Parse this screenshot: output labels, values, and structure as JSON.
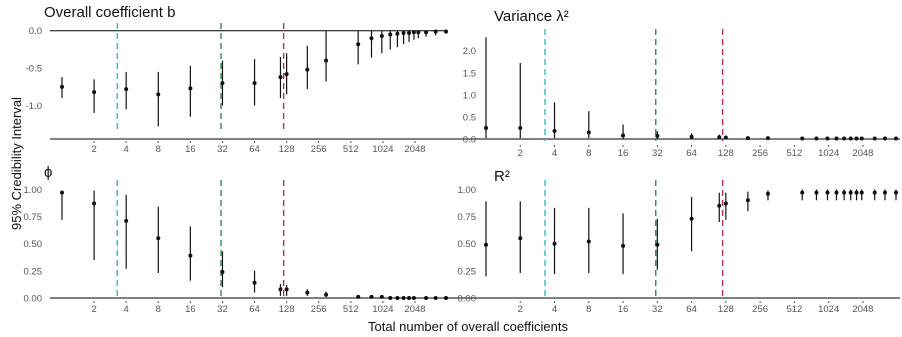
{
  "figure": {
    "ylabel": "95% Credibility Interval",
    "xlabel": "Total number of overall coefficients",
    "x_ticks": [
      2,
      4,
      8,
      16,
      32,
      64,
      128,
      256,
      512,
      1024,
      2048
    ],
    "x_scale": "log2",
    "vlines": [
      {
        "x": 3.3,
        "color": "#2bbfc9"
      },
      {
        "x": 31,
        "color": "#2e8b57"
      },
      {
        "x": 120,
        "color": "#b03060"
      }
    ]
  },
  "chart_data": [
    {
      "type": "scatter",
      "title": "Overall coefficient b",
      "ylim": [
        -1.3,
        0.05
      ],
      "yticks": [
        {
          "v": 0,
          "label": "0.0"
        },
        {
          "v": -0.5,
          "label": "-0.5"
        },
        {
          "v": -1,
          "label": "-1.0"
        }
      ],
      "baseline": 0,
      "baseline_position": "top",
      "points": [
        {
          "x": 1,
          "y": -0.75,
          "lo": -0.9,
          "hi": -0.62
        },
        {
          "x": 2,
          "y": -0.82,
          "lo": -1.1,
          "hi": -0.65
        },
        {
          "x": 4,
          "y": -0.78,
          "lo": -1.05,
          "hi": -0.55
        },
        {
          "x": 8,
          "y": -0.85,
          "lo": -1.28,
          "hi": -0.55
        },
        {
          "x": 16,
          "y": -0.77,
          "lo": -1.15,
          "hi": -0.47
        },
        {
          "x": 32,
          "y": -0.7,
          "lo": -1.0,
          "hi": -0.4
        },
        {
          "x": 64,
          "y": -0.7,
          "lo": -1.0,
          "hi": -0.38
        },
        {
          "x": 112,
          "y": -0.62,
          "lo": -0.9,
          "hi": -0.35
        },
        {
          "x": 128,
          "y": -0.58,
          "lo": -0.85,
          "hi": -0.3
        },
        {
          "x": 200,
          "y": -0.52,
          "lo": -0.78,
          "hi": -0.2
        },
        {
          "x": 300,
          "y": -0.4,
          "lo": -0.68,
          "hi": 0.0
        },
        {
          "x": 600,
          "y": -0.18,
          "lo": -0.45,
          "hi": 0.0
        },
        {
          "x": 800,
          "y": -0.1,
          "lo": -0.36,
          "hi": 0.0
        },
        {
          "x": 1000,
          "y": -0.07,
          "lo": -0.3,
          "hi": 0.0
        },
        {
          "x": 1200,
          "y": -0.05,
          "lo": -0.25,
          "hi": 0.0
        },
        {
          "x": 1400,
          "y": -0.04,
          "lo": -0.22,
          "hi": 0.0
        },
        {
          "x": 1600,
          "y": -0.03,
          "lo": -0.18,
          "hi": 0.0
        },
        {
          "x": 1800,
          "y": -0.03,
          "lo": -0.15,
          "hi": 0.0
        },
        {
          "x": 2000,
          "y": -0.02,
          "lo": -0.12,
          "hi": 0.0
        },
        {
          "x": 2200,
          "y": -0.02,
          "lo": -0.1,
          "hi": 0.0
        },
        {
          "x": 2600,
          "y": -0.02,
          "lo": -0.08,
          "hi": 0.0
        },
        {
          "x": 3200,
          "y": -0.01,
          "lo": -0.06,
          "hi": 0.0
        },
        {
          "x": 4000,
          "y": -0.01,
          "lo": -0.04,
          "hi": 0.0
        }
      ]
    },
    {
      "type": "scatter",
      "title": "Variance λ²",
      "ylim": [
        0,
        2.4
      ],
      "yticks": [
        {
          "v": 2.0,
          "label": "2.0"
        },
        {
          "v": 1.5,
          "label": "1.5"
        },
        {
          "v": 1.0,
          "label": "1.0"
        },
        {
          "v": 0.5,
          "label": "0.5"
        },
        {
          "v": 0.0,
          "label": "0.0"
        }
      ],
      "baseline": 0,
      "baseline_position": "bottom",
      "points": [
        {
          "x": 1,
          "y": 0.25,
          "lo": 0.02,
          "hi": 2.3
        },
        {
          "x": 2,
          "y": 0.25,
          "lo": 0.02,
          "hi": 1.72
        },
        {
          "x": 4,
          "y": 0.18,
          "lo": 0.02,
          "hi": 0.83
        },
        {
          "x": 8,
          "y": 0.15,
          "lo": 0.02,
          "hi": 0.63
        },
        {
          "x": 16,
          "y": 0.08,
          "lo": 0.01,
          "hi": 0.33
        },
        {
          "x": 32,
          "y": 0.07,
          "lo": 0.01,
          "hi": 0.18
        },
        {
          "x": 64,
          "y": 0.05,
          "lo": 0.01,
          "hi": 0.13
        },
        {
          "x": 112,
          "y": 0.04,
          "lo": 0.01,
          "hi": 0.1
        },
        {
          "x": 128,
          "y": 0.03,
          "lo": 0.01,
          "hi": 0.08
        },
        {
          "x": 200,
          "y": 0.02,
          "lo": 0.0,
          "hi": 0.05
        },
        {
          "x": 300,
          "y": 0.02,
          "lo": 0.0,
          "hi": 0.04
        },
        {
          "x": 600,
          "y": 0.01,
          "lo": 0.0,
          "hi": 0.02
        },
        {
          "x": 800,
          "y": 0.01,
          "lo": 0.0,
          "hi": 0.02
        },
        {
          "x": 1000,
          "y": 0.01,
          "lo": 0.0,
          "hi": 0.02
        },
        {
          "x": 1200,
          "y": 0.01,
          "lo": 0.0,
          "hi": 0.01
        },
        {
          "x": 1400,
          "y": 0.01,
          "lo": 0.0,
          "hi": 0.01
        },
        {
          "x": 1600,
          "y": 0.01,
          "lo": 0.0,
          "hi": 0.01
        },
        {
          "x": 1800,
          "y": 0.01,
          "lo": 0.0,
          "hi": 0.01
        },
        {
          "x": 2000,
          "y": 0.01,
          "lo": 0.0,
          "hi": 0.01
        },
        {
          "x": 2600,
          "y": 0.01,
          "lo": 0.0,
          "hi": 0.01
        },
        {
          "x": 3200,
          "y": 0.01,
          "lo": 0.0,
          "hi": 0.01
        },
        {
          "x": 4000,
          "y": 0.01,
          "lo": 0.0,
          "hi": 0.01
        }
      ]
    },
    {
      "type": "scatter",
      "title": "ϕ",
      "ylim": [
        0,
        1.05
      ],
      "yticks": [
        {
          "v": 1.0,
          "label": "1.00"
        },
        {
          "v": 0.75,
          "label": "0.75"
        },
        {
          "v": 0.5,
          "label": "0.50"
        },
        {
          "v": 0.25,
          "label": "0.25"
        },
        {
          "v": 0.0,
          "label": "0.00"
        }
      ],
      "baseline": 0,
      "baseline_position": "bottom",
      "points": [
        {
          "x": 1,
          "y": 0.97,
          "lo": 0.72,
          "hi": 0.99
        },
        {
          "x": 2,
          "y": 0.87,
          "lo": 0.35,
          "hi": 0.99
        },
        {
          "x": 4,
          "y": 0.71,
          "lo": 0.27,
          "hi": 0.95
        },
        {
          "x": 8,
          "y": 0.55,
          "lo": 0.23,
          "hi": 0.84
        },
        {
          "x": 16,
          "y": 0.39,
          "lo": 0.16,
          "hi": 0.66
        },
        {
          "x": 32,
          "y": 0.24,
          "lo": 0.1,
          "hi": 0.43
        },
        {
          "x": 64,
          "y": 0.14,
          "lo": 0.05,
          "hi": 0.25
        },
        {
          "x": 112,
          "y": 0.08,
          "lo": 0.02,
          "hi": 0.13
        },
        {
          "x": 128,
          "y": 0.08,
          "lo": 0.02,
          "hi": 0.12
        },
        {
          "x": 200,
          "y": 0.05,
          "lo": 0.02,
          "hi": 0.08
        },
        {
          "x": 300,
          "y": 0.03,
          "lo": 0.01,
          "hi": 0.06
        },
        {
          "x": 600,
          "y": 0.01,
          "lo": 0.0,
          "hi": 0.02
        },
        {
          "x": 800,
          "y": 0.01,
          "lo": 0.0,
          "hi": 0.01
        },
        {
          "x": 1000,
          "y": 0.01,
          "lo": 0.0,
          "hi": 0.01
        },
        {
          "x": 1200,
          "y": 0.0,
          "lo": 0.0,
          "hi": 0.01
        },
        {
          "x": 1400,
          "y": 0.0,
          "lo": 0.0,
          "hi": 0.01
        },
        {
          "x": 1600,
          "y": 0.0,
          "lo": 0.0,
          "hi": 0.01
        },
        {
          "x": 1800,
          "y": 0.0,
          "lo": 0.0,
          "hi": 0.01
        },
        {
          "x": 2000,
          "y": 0.0,
          "lo": 0.0,
          "hi": 0.01
        },
        {
          "x": 2600,
          "y": 0.0,
          "lo": 0.0,
          "hi": 0.0
        },
        {
          "x": 3200,
          "y": 0.0,
          "lo": 0.0,
          "hi": 0.0
        },
        {
          "x": 4000,
          "y": 0.0,
          "lo": 0.0,
          "hi": 0.0
        }
      ]
    },
    {
      "type": "scatter",
      "title": "R²",
      "ylim": [
        0,
        1.05
      ],
      "yticks": [
        {
          "v": 1.0,
          "label": "1.00"
        },
        {
          "v": 0.75,
          "label": "0.75"
        },
        {
          "v": 0.5,
          "label": "0.50"
        },
        {
          "v": 0.25,
          "label": "0.25"
        },
        {
          "v": 0.0,
          "label": "0.00"
        }
      ],
      "baseline": 0,
      "baseline_position": "bottom",
      "points": [
        {
          "x": 1,
          "y": 0.49,
          "lo": 0.2,
          "hi": 0.89
        },
        {
          "x": 2,
          "y": 0.55,
          "lo": 0.23,
          "hi": 0.89
        },
        {
          "x": 4,
          "y": 0.5,
          "lo": 0.22,
          "hi": 0.83
        },
        {
          "x": 8,
          "y": 0.52,
          "lo": 0.23,
          "hi": 0.83
        },
        {
          "x": 16,
          "y": 0.48,
          "lo": 0.22,
          "hi": 0.78
        },
        {
          "x": 32,
          "y": 0.49,
          "lo": 0.26,
          "hi": 0.73
        },
        {
          "x": 64,
          "y": 0.73,
          "lo": 0.43,
          "hi": 0.93
        },
        {
          "x": 112,
          "y": 0.85,
          "lo": 0.7,
          "hi": 0.97
        },
        {
          "x": 128,
          "y": 0.87,
          "lo": 0.72,
          "hi": 0.97
        },
        {
          "x": 200,
          "y": 0.9,
          "lo": 0.8,
          "hi": 0.98
        },
        {
          "x": 300,
          "y": 0.96,
          "lo": 0.9,
          "hi": 0.99
        },
        {
          "x": 600,
          "y": 0.97,
          "lo": 0.9,
          "hi": 1.0
        },
        {
          "x": 800,
          "y": 0.97,
          "lo": 0.9,
          "hi": 1.0
        },
        {
          "x": 1000,
          "y": 0.97,
          "lo": 0.9,
          "hi": 1.0
        },
        {
          "x": 1200,
          "y": 0.97,
          "lo": 0.9,
          "hi": 1.0
        },
        {
          "x": 1400,
          "y": 0.97,
          "lo": 0.9,
          "hi": 1.0
        },
        {
          "x": 1600,
          "y": 0.97,
          "lo": 0.9,
          "hi": 1.0
        },
        {
          "x": 1800,
          "y": 0.97,
          "lo": 0.9,
          "hi": 1.0
        },
        {
          "x": 2000,
          "y": 0.97,
          "lo": 0.9,
          "hi": 1.0
        },
        {
          "x": 2600,
          "y": 0.97,
          "lo": 0.9,
          "hi": 1.0
        },
        {
          "x": 3200,
          "y": 0.97,
          "lo": 0.9,
          "hi": 1.0
        },
        {
          "x": 4000,
          "y": 0.97,
          "lo": 0.9,
          "hi": 1.0
        }
      ]
    }
  ]
}
